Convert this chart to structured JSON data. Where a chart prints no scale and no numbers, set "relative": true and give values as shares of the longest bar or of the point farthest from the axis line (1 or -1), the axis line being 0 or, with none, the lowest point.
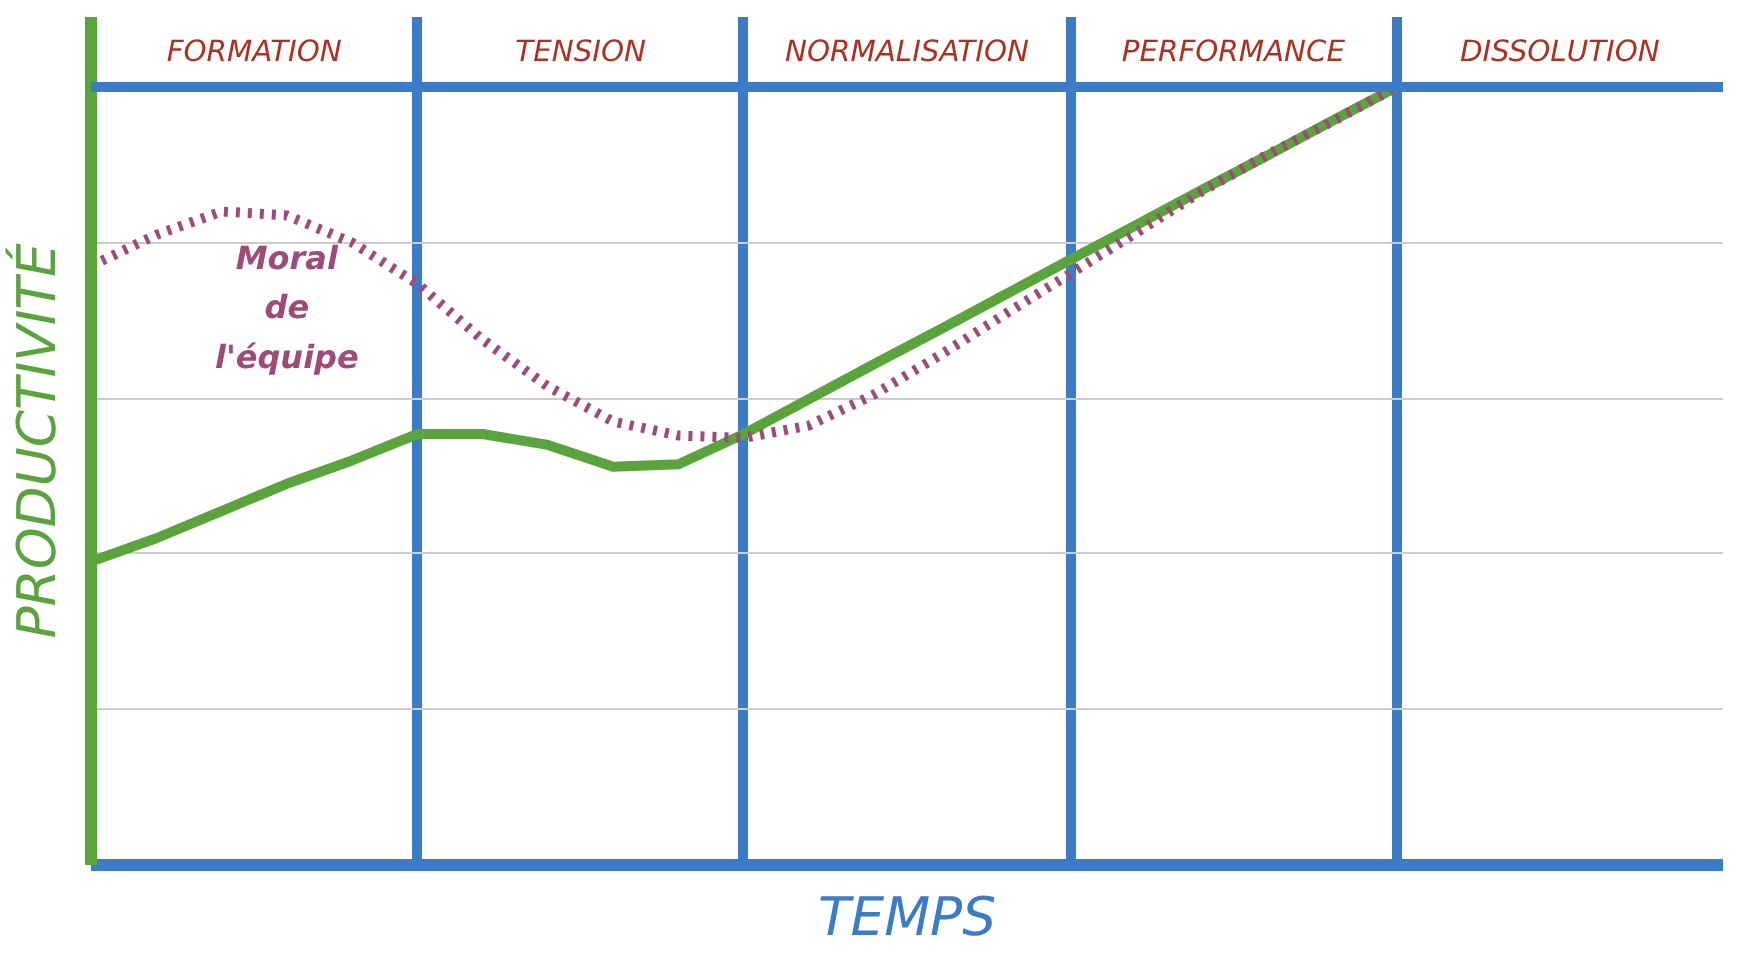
{
  "chart_data": {
    "type": "line",
    "relative": true,
    "xlabel": "TEMPS",
    "ylabel": "PRODUCTIVITÉ",
    "grid": true,
    "legend": false,
    "categories": [
      null,
      null,
      null,
      null,
      null,
      null,
      null,
      null,
      null,
      null,
      null,
      null,
      null,
      null,
      null,
      null,
      null,
      null,
      null,
      null,
      null
    ],
    "series": [
      {
        "color": "#5aa43c",
        "line_style": "solid",
        "values": [
          0.39,
          0.42,
          0.455,
          0.49,
          0.52,
          0.554,
          0.554,
          0.54,
          0.512,
          0.515,
          0.554,
          0.599,
          0.644,
          0.688,
          0.733,
          0.778,
          0.822,
          0.867,
          0.911,
          0.956,
          1.0
        ]
      },
      {
        "name": "Moral de l'équipe",
        "color": "#a04a7a",
        "line_style": "dotted",
        "values": [
          0.77,
          0.81,
          0.84,
          0.835,
          0.8,
          0.747,
          0.675,
          0.615,
          0.57,
          0.552,
          0.549,
          0.565,
          0.605,
          0.655,
          0.708,
          0.76,
          0.812,
          0.865,
          0.912,
          0.955,
          1.0
        ]
      }
    ],
    "annotations": [
      "FORMATION",
      "TENSION",
      "NORMALISATION",
      "PERFORMANCE",
      "DISSOLUTION"
    ]
  }
}
